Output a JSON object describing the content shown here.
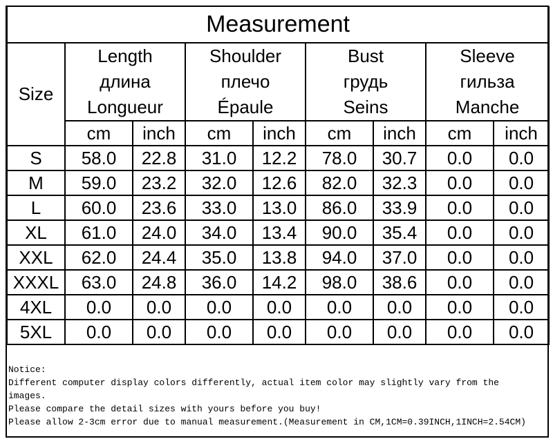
{
  "title": "Measurement",
  "size_header": "Size",
  "columns": [
    {
      "lines": [
        "Length",
        "длина",
        "Longueur"
      ],
      "units": [
        "cm",
        "inch"
      ]
    },
    {
      "lines": [
        "Shoulder",
        "плечо",
        "Épaule"
      ],
      "units": [
        "cm",
        "inch"
      ]
    },
    {
      "lines": [
        "Bust",
        "грудь",
        "Seins"
      ],
      "units": [
        "cm",
        "inch"
      ]
    },
    {
      "lines": [
        "Sleeve",
        "гильза",
        "Manche"
      ],
      "units": [
        "cm",
        "inch"
      ]
    }
  ],
  "rows": [
    [
      "S",
      "58.0",
      "22.8",
      "31.0",
      "12.2",
      "78.0",
      "30.7",
      "0.0",
      "0.0"
    ],
    [
      "M",
      "59.0",
      "23.2",
      "32.0",
      "12.6",
      "82.0",
      "32.3",
      "0.0",
      "0.0"
    ],
    [
      "L",
      "60.0",
      "23.6",
      "33.0",
      "13.0",
      "86.0",
      "33.9",
      "0.0",
      "0.0"
    ],
    [
      "XL",
      "61.0",
      "24.0",
      "34.0",
      "13.4",
      "90.0",
      "35.4",
      "0.0",
      "0.0"
    ],
    [
      "XXL",
      "62.0",
      "24.4",
      "35.0",
      "13.8",
      "94.0",
      "37.0",
      "0.0",
      "0.0"
    ],
    [
      "XXXL",
      "63.0",
      "24.8",
      "36.0",
      "14.2",
      "98.0",
      "38.6",
      "0.0",
      "0.0"
    ],
    [
      "4XL",
      "0.0",
      "0.0",
      "0.0",
      "0.0",
      "0.0",
      "0.0",
      "0.0",
      "0.0"
    ],
    [
      "5XL",
      "0.0",
      "0.0",
      "0.0",
      "0.0",
      "0.0",
      "0.0",
      "0.0",
      "0.0"
    ]
  ],
  "notice": {
    "heading": "Notice:",
    "lines": [
      "Different computer display colors differently, actual item color may slightly vary from the images.",
      "Please compare the detail sizes with yours before you buy!",
      "Please allow 2-3cm error due to manual measurement.(Measurement in CM,1CM=0.39INCH,1INCH=2.54CM)"
    ]
  }
}
